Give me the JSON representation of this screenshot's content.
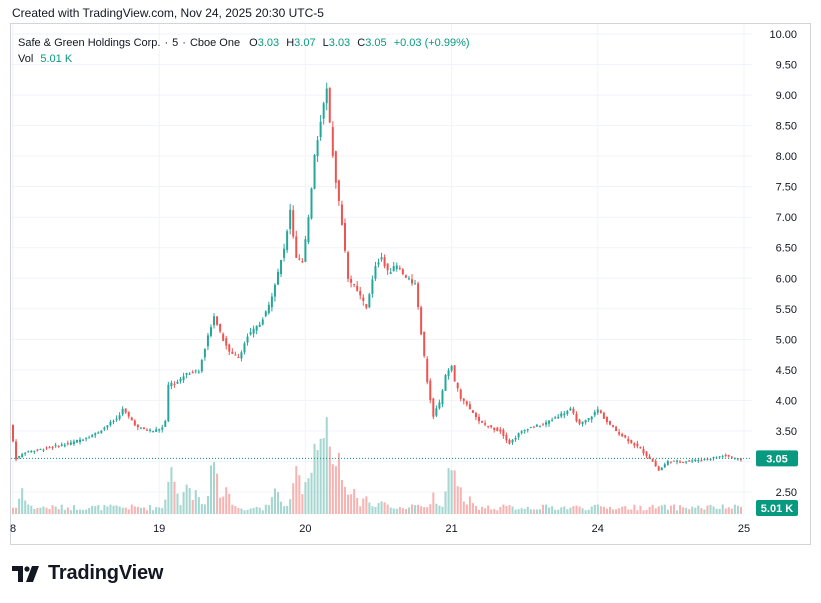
{
  "header": {
    "credit": "Created with TradingView.com, Nov 24, 2025 20:30 UTC-5"
  },
  "legend": {
    "symbol": "Safe & Green Holdings Corp.",
    "interval": "5",
    "exchange": "Cboe One",
    "o_label": "O",
    "o_value": "3.03",
    "h_label": "H",
    "h_value": "3.07",
    "l_label": "L",
    "l_value": "3.03",
    "c_label": "C",
    "c_value": "3.05",
    "change": "+0.03 (+0.99%)",
    "vol_label": "Vol",
    "vol_value": "5.01 K"
  },
  "branding": {
    "logo_text": "TradingView",
    "logo_icon": "tradingview-logo-icon"
  },
  "colors": {
    "up": "#26a69a",
    "down": "#ef5350",
    "vol_up": "#a5d6d0",
    "vol_down": "#f7b3b1",
    "price_line": "#089981"
  },
  "chart_data": {
    "type": "candlestick",
    "title": "Safe & Green Holdings Corp. · 5 · Cboe One",
    "y_ticks": [
      "10.00",
      "9.50",
      "9.00",
      "8.50",
      "8.00",
      "7.50",
      "7.00",
      "6.50",
      "6.00",
      "5.50",
      "5.00",
      "4.50",
      "4.00",
      "3.50",
      "3.00",
      "2.50"
    ],
    "ylim": [
      2.4,
      10.1
    ],
    "x_ticks": [
      "8",
      "19",
      "20",
      "21",
      "24",
      "25"
    ],
    "last_price": "3.05",
    "last_volume": "5.01 K",
    "grid": true,
    "price_path": [
      [
        0,
        3.6
      ],
      [
        2,
        3.05
      ],
      [
        5,
        3.15
      ],
      [
        10,
        3.2
      ],
      [
        20,
        3.3
      ],
      [
        28,
        3.45
      ],
      [
        35,
        3.7
      ],
      [
        37,
        3.85
      ],
      [
        42,
        3.55
      ],
      [
        47,
        3.5
      ],
      [
        50,
        3.55
      ],
      [
        51,
        3.65
      ],
      [
        52,
        4.25
      ],
      [
        55,
        4.3
      ],
      [
        58,
        4.45
      ],
      [
        62,
        4.5
      ],
      [
        65,
        5.05
      ],
      [
        67,
        5.4
      ],
      [
        69,
        5.1
      ],
      [
        72,
        4.8
      ],
      [
        75,
        4.7
      ],
      [
        78,
        5.05
      ],
      [
        82,
        5.25
      ],
      [
        85,
        5.55
      ],
      [
        88,
        6.1
      ],
      [
        90,
        6.5
      ],
      [
        92,
        7.1
      ],
      [
        94,
        6.3
      ],
      [
        96,
        6.25
      ],
      [
        98,
        7.0
      ],
      [
        100,
        8.0
      ],
      [
        102,
        8.6
      ],
      [
        104,
        9.1
      ],
      [
        105,
        8.5
      ],
      [
        107,
        7.6
      ],
      [
        109,
        6.9
      ],
      [
        111,
        6.0
      ],
      [
        114,
        5.8
      ],
      [
        117,
        5.5
      ],
      [
        120,
        6.2
      ],
      [
        122,
        6.35
      ],
      [
        124,
        6.1
      ],
      [
        127,
        6.2
      ],
      [
        130,
        6.0
      ],
      [
        133,
        5.9
      ],
      [
        135,
        5.1
      ],
      [
        137,
        4.3
      ],
      [
        139,
        3.75
      ],
      [
        141,
        3.95
      ],
      [
        143,
        4.4
      ],
      [
        145,
        4.55
      ],
      [
        146,
        4.3
      ],
      [
        148,
        4.05
      ],
      [
        151,
        3.85
      ],
      [
        154,
        3.65
      ],
      [
        158,
        3.55
      ],
      [
        161,
        3.5
      ],
      [
        164,
        3.3
      ],
      [
        167,
        3.45
      ],
      [
        170,
        3.55
      ],
      [
        175,
        3.6
      ],
      [
        180,
        3.75
      ],
      [
        184,
        3.85
      ],
      [
        187,
        3.6
      ],
      [
        190,
        3.7
      ],
      [
        193,
        3.85
      ],
      [
        196,
        3.65
      ],
      [
        199,
        3.5
      ],
      [
        203,
        3.35
      ],
      [
        207,
        3.2
      ],
      [
        211,
        3.0
      ],
      [
        213,
        2.85
      ],
      [
        216,
        3.0
      ],
      [
        220,
        3.0
      ],
      [
        225,
        3.02
      ],
      [
        230,
        3.05
      ],
      [
        235,
        3.1
      ],
      [
        239,
        3.03
      ]
    ],
    "volume_spikes": [
      [
        3,
        0.22
      ],
      [
        52,
        0.55
      ],
      [
        57,
        0.35
      ],
      [
        60,
        0.25
      ],
      [
        66,
        0.62
      ],
      [
        70,
        0.3
      ],
      [
        86,
        0.35
      ],
      [
        93,
        0.55
      ],
      [
        97,
        0.4
      ],
      [
        99,
        0.7
      ],
      [
        101,
        1.0
      ],
      [
        103,
        0.85
      ],
      [
        105,
        0.65
      ],
      [
        107,
        0.55
      ],
      [
        109,
        0.35
      ],
      [
        112,
        0.25
      ],
      [
        116,
        0.2
      ],
      [
        121,
        0.15
      ],
      [
        133,
        0.12
      ],
      [
        138,
        0.2
      ],
      [
        144,
        0.6
      ],
      [
        146,
        0.35
      ],
      [
        150,
        0.15
      ]
    ]
  }
}
